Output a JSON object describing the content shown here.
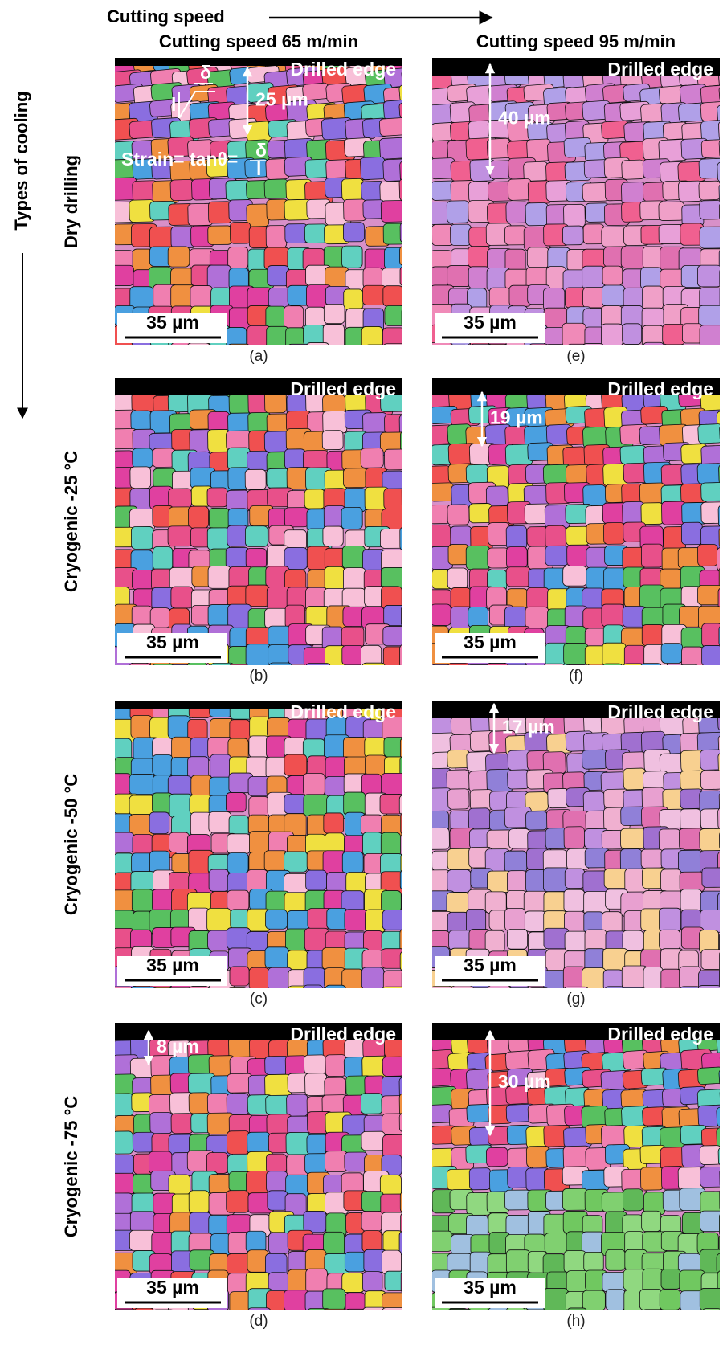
{
  "header": {
    "column_axis": "Cutting speed",
    "row_axis": "Types of cooling"
  },
  "columns": [
    "Cutting speed 65 m/min",
    "Cutting speed 95 m/min"
  ],
  "rows": [
    "Dry drilling",
    "Cryogenic -25 °C",
    "Cryogenic -50 °C",
    "Cryogenic -75 °C"
  ],
  "panels": [
    {
      "label": "(a)",
      "edge": "Drilled edge",
      "scale": "35 µm",
      "depth": "25 µm",
      "formula": "Strain= tanθ=",
      "numerator": "δ",
      "denominator": "l"
    },
    {
      "label": "(e)",
      "edge": "Drilled edge",
      "scale": "35 µm",
      "depth": "40 µm"
    },
    {
      "label": "(b)",
      "edge": "Drilled edge",
      "scale": "35 µm"
    },
    {
      "label": "(f)",
      "edge": "Drilled edge",
      "scale": "35 µm",
      "depth": "19 µm"
    },
    {
      "label": "(c)",
      "edge": "Drilled edge",
      "scale": "35 µm"
    },
    {
      "label": "(g)",
      "edge": "Drilled edge",
      "scale": "35 µm",
      "depth": "17 µm"
    },
    {
      "label": "(d)",
      "edge": "Drilled edge",
      "scale": "35 µm",
      "depth": "8 µm"
    },
    {
      "label": "(h)",
      "edge": "Drilled edge",
      "scale": "35 µm",
      "depth": "30 µm"
    }
  ]
}
